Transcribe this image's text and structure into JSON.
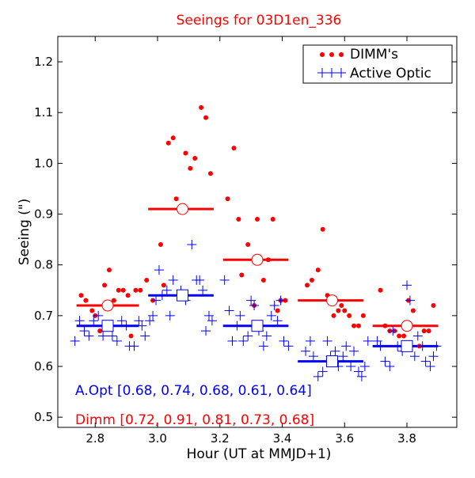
{
  "chart_data": {
    "type": "scatter",
    "title": "Seeings for 03D1en_336",
    "xlabel": "Hour (UT at MMJD+1)",
    "ylabel": "Seeing (\")",
    "xlim": [
      2.68,
      3.96
    ],
    "ylim": [
      0.48,
      1.25
    ],
    "xticks": [
      2.8,
      3.0,
      3.2,
      3.4,
      3.6,
      3.8
    ],
    "xtick_labels": [
      "2.8",
      "3.0",
      "3.2",
      "3.4",
      "3.6",
      "3.8"
    ],
    "yticks": [
      0.5,
      0.6,
      0.7,
      0.8,
      0.9,
      1.0,
      1.1,
      1.2
    ],
    "ytick_labels": [
      "0.5",
      "0.6",
      "0.7",
      "0.8",
      "0.9",
      "1.0",
      "1.1",
      "1.2"
    ],
    "grid": false,
    "legend_position": "top-right",
    "colors": {
      "dimm": "#ff0000",
      "active_optic": "#0000ff"
    },
    "series": [
      {
        "name": "DIMM's",
        "marker": "dot",
        "color": "#ff0000",
        "points": [
          [
            2.755,
            0.74
          ],
          [
            2.77,
            0.73
          ],
          [
            2.79,
            0.71
          ],
          [
            2.8,
            0.7
          ],
          [
            2.815,
            0.67
          ],
          [
            2.83,
            0.76
          ],
          [
            2.845,
            0.79
          ],
          [
            2.86,
            0.73
          ],
          [
            2.875,
            0.75
          ],
          [
            2.89,
            0.75
          ],
          [
            2.905,
            0.74
          ],
          [
            2.915,
            0.66
          ],
          [
            2.93,
            0.75
          ],
          [
            2.945,
            0.75
          ],
          [
            2.965,
            0.77
          ],
          [
            2.985,
            0.73
          ],
          [
            3.01,
            0.84
          ],
          [
            3.02,
            0.76
          ],
          [
            3.035,
            1.04
          ],
          [
            3.05,
            1.05
          ],
          [
            3.06,
            0.93
          ],
          [
            3.08,
            0.91
          ],
          [
            3.09,
            1.02
          ],
          [
            3.105,
            0.99
          ],
          [
            3.12,
            1.01
          ],
          [
            3.14,
            1.11
          ],
          [
            3.155,
            1.09
          ],
          [
            3.17,
            0.98
          ],
          [
            3.225,
            0.93
          ],
          [
            3.245,
            1.03
          ],
          [
            3.26,
            0.89
          ],
          [
            3.27,
            0.78
          ],
          [
            3.29,
            0.84
          ],
          [
            3.31,
            0.72
          ],
          [
            3.32,
            0.89
          ],
          [
            3.34,
            0.77
          ],
          [
            3.355,
            0.81
          ],
          [
            3.37,
            0.89
          ],
          [
            3.385,
            0.71
          ],
          [
            3.395,
            0.73
          ],
          [
            3.41,
            0.73
          ],
          [
            3.48,
            0.76
          ],
          [
            3.495,
            0.77
          ],
          [
            3.515,
            0.79
          ],
          [
            3.53,
            0.87
          ],
          [
            3.545,
            0.74
          ],
          [
            3.565,
            0.7
          ],
          [
            3.58,
            0.71
          ],
          [
            3.59,
            0.72
          ],
          [
            3.6,
            0.71
          ],
          [
            3.615,
            0.7
          ],
          [
            3.63,
            0.68
          ],
          [
            3.645,
            0.68
          ],
          [
            3.66,
            0.7
          ],
          [
            3.715,
            0.75
          ],
          [
            3.73,
            0.68
          ],
          [
            3.745,
            0.67
          ],
          [
            3.76,
            0.67
          ],
          [
            3.775,
            0.66
          ],
          [
            3.79,
            0.66
          ],
          [
            3.805,
            0.73
          ],
          [
            3.82,
            0.71
          ],
          [
            3.84,
            0.64
          ],
          [
            3.855,
            0.67
          ],
          [
            3.87,
            0.67
          ],
          [
            3.885,
            0.72
          ]
        ]
      },
      {
        "name": "Active Optic",
        "marker": "plus",
        "color": "#0000ff",
        "points": [
          [
            2.735,
            0.65
          ],
          [
            2.75,
            0.69
          ],
          [
            2.765,
            0.67
          ],
          [
            2.78,
            0.66
          ],
          [
            2.795,
            0.69
          ],
          [
            2.81,
            0.7
          ],
          [
            2.825,
            0.66
          ],
          [
            2.84,
            0.68
          ],
          [
            2.855,
            0.66
          ],
          [
            2.87,
            0.65
          ],
          [
            2.885,
            0.69
          ],
          [
            2.9,
            0.68
          ],
          [
            2.91,
            0.64
          ],
          [
            2.925,
            0.64
          ],
          [
            2.94,
            0.69
          ],
          [
            2.95,
            0.68
          ],
          [
            2.96,
            0.66
          ],
          [
            2.975,
            0.69
          ],
          [
            2.985,
            0.7
          ],
          [
            2.995,
            0.73
          ],
          [
            3.005,
            0.79
          ],
          [
            3.015,
            0.74
          ],
          [
            3.03,
            0.75
          ],
          [
            3.04,
            0.7
          ],
          [
            3.05,
            0.77
          ],
          [
            3.065,
            0.74
          ],
          [
            3.075,
            0.75
          ],
          [
            3.09,
            0.73
          ],
          [
            3.11,
            0.84
          ],
          [
            3.125,
            0.77
          ],
          [
            3.135,
            0.77
          ],
          [
            3.145,
            0.75
          ],
          [
            3.155,
            0.67
          ],
          [
            3.165,
            0.7
          ],
          [
            3.175,
            0.69
          ],
          [
            3.215,
            0.77
          ],
          [
            3.23,
            0.71
          ],
          [
            3.24,
            0.65
          ],
          [
            3.255,
            0.68
          ],
          [
            3.265,
            0.7
          ],
          [
            3.275,
            0.65
          ],
          [
            3.29,
            0.66
          ],
          [
            3.3,
            0.73
          ],
          [
            3.31,
            0.72
          ],
          [
            3.325,
            0.67
          ],
          [
            3.34,
            0.64
          ],
          [
            3.35,
            0.66
          ],
          [
            3.365,
            0.7
          ],
          [
            3.375,
            0.72
          ],
          [
            3.385,
            0.69
          ],
          [
            3.395,
            0.73
          ],
          [
            3.405,
            0.65
          ],
          [
            3.42,
            0.64
          ],
          [
            3.475,
            0.63
          ],
          [
            3.49,
            0.65
          ],
          [
            3.5,
            0.62
          ],
          [
            3.515,
            0.58
          ],
          [
            3.53,
            0.59
          ],
          [
            3.545,
            0.65
          ],
          [
            3.555,
            0.62
          ],
          [
            3.57,
            0.63
          ],
          [
            3.58,
            0.6
          ],
          [
            3.595,
            0.62
          ],
          [
            3.605,
            0.64
          ],
          [
            3.62,
            0.6
          ],
          [
            3.63,
            0.63
          ],
          [
            3.645,
            0.59
          ],
          [
            3.655,
            0.58
          ],
          [
            3.665,
            0.6
          ],
          [
            3.675,
            0.65
          ],
          [
            3.705,
            0.65
          ],
          [
            3.715,
            0.64
          ],
          [
            3.73,
            0.61
          ],
          [
            3.745,
            0.6
          ],
          [
            3.755,
            0.67
          ],
          [
            3.77,
            0.64
          ],
          [
            3.785,
            0.63
          ],
          [
            3.8,
            0.76
          ],
          [
            3.81,
            0.73
          ],
          [
            3.825,
            0.62
          ],
          [
            3.835,
            0.66
          ],
          [
            3.85,
            0.64
          ],
          [
            3.86,
            0.61
          ],
          [
            3.875,
            0.6
          ],
          [
            3.885,
            0.62
          ],
          [
            3.895,
            0.64
          ]
        ]
      }
    ],
    "bin_medians": {
      "dimm": [
        {
          "x0": 2.74,
          "x1": 2.94,
          "y": 0.72,
          "xc": 2.84
        },
        {
          "x0": 2.97,
          "x1": 3.18,
          "y": 0.91,
          "xc": 3.08
        },
        {
          "x0": 3.21,
          "x1": 3.42,
          "y": 0.81,
          "xc": 3.32
        },
        {
          "x0": 3.45,
          "x1": 3.66,
          "y": 0.73,
          "xc": 3.56
        },
        {
          "x0": 3.69,
          "x1": 3.9,
          "y": 0.68,
          "xc": 3.8
        }
      ],
      "active_optic": [
        {
          "x0": 2.74,
          "x1": 2.94,
          "y": 0.68,
          "xc": 2.84
        },
        {
          "x0": 2.97,
          "x1": 3.18,
          "y": 0.74,
          "xc": 3.08
        },
        {
          "x0": 3.21,
          "x1": 3.42,
          "y": 0.68,
          "xc": 3.32
        },
        {
          "x0": 3.45,
          "x1": 3.66,
          "y": 0.61,
          "xc": 3.56
        },
        {
          "x0": 3.69,
          "x1": 3.9,
          "y": 0.64,
          "xc": 3.8
        }
      ]
    },
    "annotations": {
      "aopt": "A.Opt [0.68, 0.74, 0.68, 0.61, 0.64]",
      "dimm": "Dimm [0.72, 0.91, 0.81, 0.73, 0.68]"
    }
  }
}
